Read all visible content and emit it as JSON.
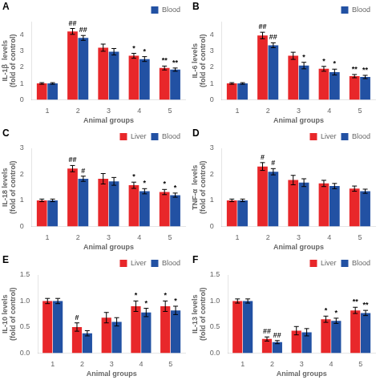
{
  "chart_data": [
    {
      "type": "bar",
      "title": "A",
      "xlabel": "Animal groups",
      "ylabel": "IL-1β  levels\n(fold of control)",
      "categories": [
        "1",
        "2",
        "3",
        "4",
        "5"
      ],
      "series": [
        {
          "color": "#e8272a",
          "values": [
            1.0,
            4.2,
            3.2,
            2.7,
            1.95
          ],
          "errors": [
            0.05,
            0.18,
            0.22,
            0.15,
            0.12
          ],
          "annotations": [
            null,
            "##",
            null,
            "*",
            "**"
          ]
        },
        {
          "name": "Blood",
          "color": "#2251a3",
          "values": [
            1.0,
            3.8,
            2.95,
            2.5,
            1.85
          ],
          "errors": [
            0.05,
            0.15,
            0.2,
            0.15,
            0.1
          ],
          "annotations": [
            null,
            "##",
            null,
            "*",
            "**"
          ]
        }
      ],
      "ylim": [
        0,
        4.8
      ],
      "yticks": [
        0,
        1,
        2,
        3,
        4
      ],
      "grid": false,
      "legend": "upper right"
    },
    {
      "type": "bar",
      "title": "B",
      "xlabel": "Animal groups",
      "ylabel": "IL-6 levels\n(fold of control)",
      "categories": [
        "1",
        "2",
        "3",
        "4",
        "5"
      ],
      "series": [
        {
          "color": "#e8272a",
          "values": [
            1.0,
            3.95,
            2.7,
            1.9,
            1.45
          ],
          "errors": [
            0.05,
            0.2,
            0.22,
            0.15,
            0.1
          ],
          "annotations": [
            null,
            "##",
            null,
            "*",
            "**"
          ]
        },
        {
          "name": "Blood",
          "color": "#2251a3",
          "values": [
            1.0,
            3.35,
            2.1,
            1.7,
            1.4
          ],
          "errors": [
            0.05,
            0.15,
            0.2,
            0.18,
            0.1
          ],
          "annotations": [
            null,
            "##",
            "*",
            "*",
            "**"
          ]
        }
      ],
      "ylim": [
        0,
        4.8
      ],
      "yticks": [
        0,
        1,
        2,
        3,
        4
      ],
      "grid": false,
      "legend": "upper right"
    },
    {
      "type": "bar",
      "title": "C",
      "xlabel": "Animal groups",
      "ylabel": "IL-18 levels\n(fold of control)",
      "categories": [
        "1",
        "2",
        "3",
        "4",
        "5"
      ],
      "series": [
        {
          "name": "Liver",
          "color": "#e8272a",
          "values": [
            1.0,
            2.22,
            1.83,
            1.58,
            1.32
          ],
          "errors": [
            0.05,
            0.12,
            0.2,
            0.12,
            0.1
          ],
          "annotations": [
            null,
            "##",
            null,
            "*",
            "*"
          ]
        },
        {
          "name": "Blood",
          "color": "#2251a3",
          "values": [
            1.0,
            1.83,
            1.73,
            1.35,
            1.2
          ],
          "errors": [
            0.05,
            0.1,
            0.15,
            0.1,
            0.08
          ],
          "annotations": [
            null,
            "#",
            null,
            "*",
            "*"
          ]
        }
      ],
      "ylim": [
        0,
        3.0
      ],
      "yticks": [
        0,
        1,
        2,
        3
      ],
      "grid": false,
      "legend": "upper right"
    },
    {
      "type": "bar",
      "title": "D",
      "xlabel": "Animal groups",
      "ylabel": "TNF-α  levels\n(fold of control)",
      "categories": [
        "1",
        "2",
        "3",
        "4",
        "5"
      ],
      "series": [
        {
          "name": "Liver",
          "color": "#e8272a",
          "values": [
            1.0,
            2.3,
            1.78,
            1.65,
            1.45
          ],
          "errors": [
            0.05,
            0.15,
            0.18,
            0.12,
            0.1
          ],
          "annotations": [
            null,
            "#",
            null,
            null,
            null
          ]
        },
        {
          "name": "Blood",
          "color": "#2251a3",
          "values": [
            1.0,
            2.1,
            1.68,
            1.55,
            1.35
          ],
          "errors": [
            0.05,
            0.12,
            0.15,
            0.1,
            0.08
          ],
          "annotations": [
            null,
            "#",
            null,
            null,
            null
          ]
        }
      ],
      "ylim": [
        0,
        3.0
      ],
      "yticks": [
        0,
        1,
        2,
        3
      ],
      "grid": false,
      "legend": "upper right"
    },
    {
      "type": "bar",
      "title": "E",
      "xlabel": "Animal groups",
      "ylabel": "IL-10 levels\n(fold of control)",
      "categories": [
        "1",
        "2",
        "3",
        "4",
        "5"
      ],
      "series": [
        {
          "name": "Liver",
          "color": "#e8272a",
          "values": [
            1.0,
            0.5,
            0.68,
            0.9,
            0.9
          ],
          "errors": [
            0.05,
            0.08,
            0.1,
            0.1,
            0.1
          ],
          "annotations": [
            null,
            "#",
            null,
            "*",
            "*"
          ]
        },
        {
          "name": "Blood",
          "color": "#2251a3",
          "values": [
            1.0,
            0.38,
            0.6,
            0.78,
            0.82
          ],
          "errors": [
            0.05,
            0.05,
            0.08,
            0.08,
            0.08
          ],
          "annotations": [
            null,
            null,
            null,
            "*",
            "*"
          ]
        }
      ],
      "ylim": [
        0,
        1.5
      ],
      "yticks": [
        {
          "value": 0,
          "label": "0.0"
        },
        0.5,
        {
          "value": 1,
          "label": "1.0"
        },
        1.5
      ],
      "grid": false,
      "legend": "upper right"
    },
    {
      "type": "bar",
      "title": "F",
      "xlabel": "Animal groups",
      "ylabel": "IL-13 levels\n(fold of control)",
      "categories": [
        "1",
        "2",
        "3",
        "4",
        "5"
      ],
      "series": [
        {
          "name": "Liver",
          "color": "#e8272a",
          "values": [
            1.0,
            0.27,
            0.43,
            0.65,
            0.82
          ],
          "errors": [
            0.04,
            0.04,
            0.08,
            0.06,
            0.06
          ],
          "annotations": [
            null,
            "##",
            null,
            "*",
            "**"
          ]
        },
        {
          "name": "Blood",
          "color": "#2251a3",
          "values": [
            1.0,
            0.21,
            0.4,
            0.62,
            0.77
          ],
          "errors": [
            0.04,
            0.03,
            0.07,
            0.05,
            0.05
          ],
          "annotations": [
            null,
            "##",
            null,
            "*",
            "**"
          ]
        }
      ],
      "ylim": [
        0,
        1.5
      ],
      "yticks": [
        {
          "value": 0,
          "label": "0.0"
        },
        0.5,
        {
          "value": 1,
          "label": "1.0"
        },
        1.5
      ],
      "grid": false,
      "legend": "upper right"
    }
  ]
}
